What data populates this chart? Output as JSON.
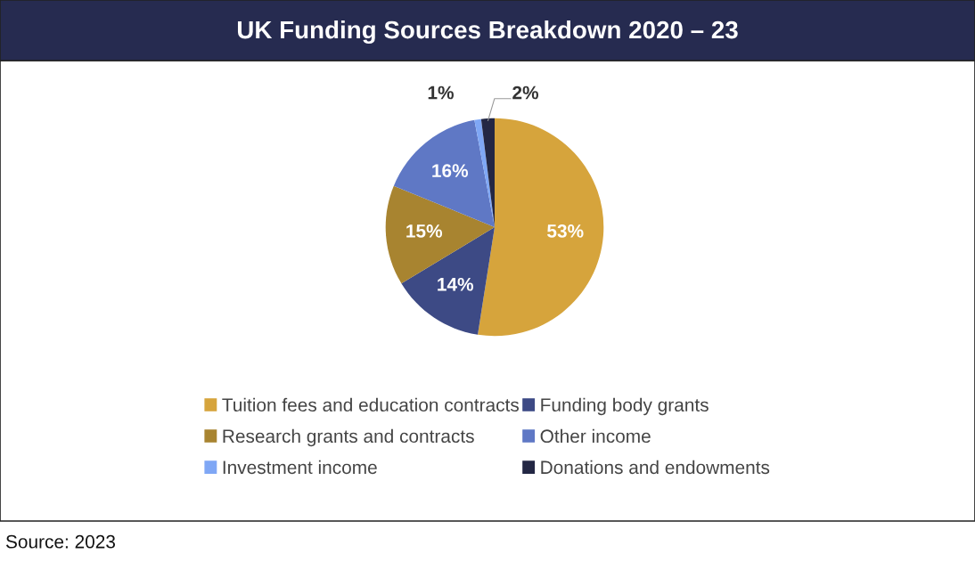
{
  "chart_data": {
    "type": "pie",
    "title": "UK Funding Sources Breakdown 2020 – 23",
    "categories": [
      "Tuition fees and education contracts",
      "Funding body grants",
      "Research grants and contracts",
      "Other income",
      "Investment income",
      "Donations and endowments"
    ],
    "values": [
      53,
      14,
      15,
      16,
      1,
      2
    ],
    "value_labels": [
      "53%",
      "14%",
      "15%",
      "16%",
      "1%",
      "2%"
    ],
    "colors": [
      "#d6a43c",
      "#3d4a85",
      "#a88430",
      "#5f78c5",
      "#7fa7f5",
      "#232744"
    ],
    "legend": "bottom",
    "annotations": [
      "Source: 2023"
    ]
  }
}
